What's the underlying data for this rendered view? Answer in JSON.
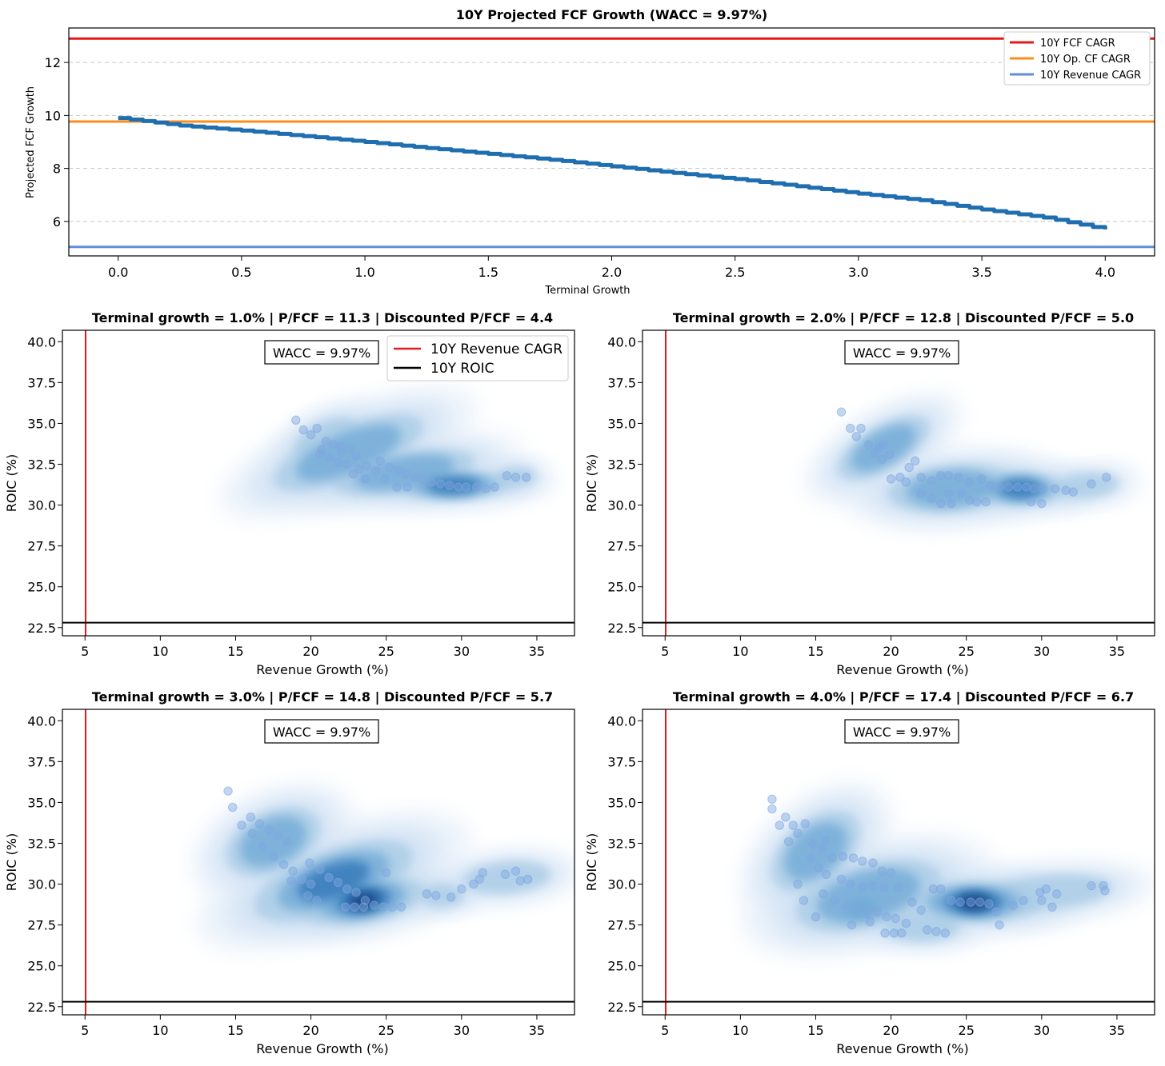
{
  "chart_data": [
    {
      "type": "line",
      "title": "10Y Projected FCF Growth (WACC = 9.97%)",
      "xlabel": "Terminal Growth",
      "ylabel": "Projected FCF Growth",
      "xlim": [
        -0.2,
        4.2
      ],
      "ylim": [
        4.7,
        13.3
      ],
      "xticks": [
        "0.0",
        "0.5",
        "1.0",
        "1.5",
        "2.0",
        "2.5",
        "3.0",
        "3.5",
        "4.0"
      ],
      "yticks": [
        "6",
        "8",
        "10",
        "12"
      ],
      "grid": "y-dashed",
      "legend_position": "top-right",
      "series": [
        {
          "name": "",
          "color": "#1f6fb0",
          "x": [
            0.0,
            0.25,
            0.5,
            0.75,
            1.0,
            1.25,
            1.5,
            1.75,
            2.0,
            2.25,
            2.5,
            2.75,
            3.0,
            3.25,
            3.5,
            3.75,
            4.0
          ],
          "y": [
            9.9,
            9.62,
            9.43,
            9.22,
            9.0,
            8.77,
            8.55,
            8.33,
            8.08,
            7.83,
            7.6,
            7.33,
            7.05,
            6.8,
            6.45,
            6.15,
            5.7
          ]
        }
      ],
      "hlines": [
        {
          "name": "10Y FCF CAGR",
          "y": 12.9,
          "color": "#e41a1c"
        },
        {
          "name": "10Y Op. CF CAGR",
          "y": 9.77,
          "color": "#ff8c1a"
        },
        {
          "name": "10Y Revenue CAGR",
          "y": 5.04,
          "color": "#5f8edb"
        }
      ]
    },
    {
      "type": "scatter",
      "title": "Terminal growth = 1.0% | P/FCF = 11.3 | Discounted P/FCF = 4.4",
      "xlabel": "Revenue Growth (%)",
      "ylabel": "ROIC (%)",
      "annotation": "WACC = 9.97%",
      "xlim": [
        3.5,
        37.5
      ],
      "ylim": [
        22,
        40.7
      ],
      "vline": {
        "name": "10Y Revenue CAGR",
        "x": 5.04,
        "color": "#e41a1c"
      },
      "hline": {
        "name": "10Y ROIC",
        "y": 22.8,
        "color": "#000000"
      },
      "show_legend": true,
      "points": [
        [
          19,
          35.2
        ],
        [
          19.5,
          34.6
        ],
        [
          20,
          34.3
        ],
        [
          20.4,
          34.7
        ],
        [
          21,
          33.9
        ],
        [
          21.5,
          33.7
        ],
        [
          22,
          33.6
        ],
        [
          22.6,
          33.4
        ],
        [
          23,
          33.0
        ],
        [
          20.7,
          33.4
        ],
        [
          21.2,
          32.9
        ],
        [
          21.8,
          32.6
        ],
        [
          22.4,
          32.5
        ],
        [
          23.2,
          32.2
        ],
        [
          23.7,
          32.4
        ],
        [
          24.3,
          32.1
        ],
        [
          24.6,
          32.7
        ],
        [
          25.2,
          32.3
        ],
        [
          25.8,
          32.1
        ],
        [
          26.3,
          31.9
        ],
        [
          26.9,
          31.7
        ],
        [
          27.4,
          31.6
        ],
        [
          28.0,
          31.4
        ],
        [
          28.6,
          31.3
        ],
        [
          29.2,
          31.2
        ],
        [
          29.8,
          31.1
        ],
        [
          30.3,
          31.1
        ],
        [
          31.0,
          31.1
        ],
        [
          31.6,
          31.0
        ],
        [
          32.2,
          31.1
        ],
        [
          33.0,
          31.8
        ],
        [
          33.6,
          31.7
        ],
        [
          34.3,
          31.7
        ],
        [
          22.8,
          31.9
        ],
        [
          23.6,
          31.6
        ],
        [
          25.7,
          31.1
        ],
        [
          26.4,
          31.1
        ],
        [
          24.9,
          31.6
        ],
        [
          20.6,
          33.1
        ],
        [
          22.0,
          33.2
        ]
      ],
      "blobs": [
        {
          "x": 22.5,
          "y": 33.2,
          "rx": 4.8,
          "ry": 1.2,
          "rot": -22,
          "w": 1.0
        },
        {
          "x": 26.2,
          "y": 32.0,
          "rx": 4.5,
          "ry": 0.9,
          "rot": -10,
          "w": 0.9
        },
        {
          "x": 29.5,
          "y": 31.2,
          "rx": 3.0,
          "ry": 0.45,
          "rot": -2,
          "w": 1.4
        },
        {
          "x": 33.6,
          "y": 31.7,
          "rx": 1.5,
          "ry": 0.35,
          "rot": -4,
          "w": 0.6
        },
        {
          "x": 21.0,
          "y": 34.0,
          "rx": 2.2,
          "ry": 0.8,
          "rot": -25,
          "w": 0.8
        }
      ]
    },
    {
      "type": "scatter",
      "title": "Terminal growth = 2.0% | P/FCF = 12.8 | Discounted P/FCF = 5.0",
      "xlabel": "Revenue Growth (%)",
      "ylabel": "ROIC (%)",
      "annotation": "WACC = 9.97%",
      "xlim": [
        3.5,
        37.5
      ],
      "ylim": [
        22,
        40.7
      ],
      "vline": {
        "name": "10Y Revenue CAGR",
        "x": 5.04,
        "color": "#e41a1c"
      },
      "hline": {
        "name": "10Y ROIC",
        "y": 22.8,
        "color": "#000000"
      },
      "show_legend": false,
      "points": [
        [
          16.7,
          35.7
        ],
        [
          17.3,
          34.7
        ],
        [
          18.0,
          34.7
        ],
        [
          17.7,
          34.2
        ],
        [
          18.5,
          33.7
        ],
        [
          19.2,
          33.5
        ],
        [
          19.5,
          33.7
        ],
        [
          18.9,
          33.2
        ],
        [
          19.9,
          33.1
        ],
        [
          19.4,
          32.8
        ],
        [
          21.2,
          32.3
        ],
        [
          21.6,
          32.7
        ],
        [
          20.6,
          31.7
        ],
        [
          20.0,
          31.6
        ],
        [
          21.0,
          31.4
        ],
        [
          22.0,
          31.7
        ],
        [
          22.7,
          31.5
        ],
        [
          23.3,
          31.8
        ],
        [
          23.8,
          31.8
        ],
        [
          24.5,
          31.7
        ],
        [
          25.2,
          31.4
        ],
        [
          26.0,
          31.6
        ],
        [
          26.6,
          31.2
        ],
        [
          27.2,
          31.1
        ],
        [
          27.8,
          31.1
        ],
        [
          28.4,
          31.1
        ],
        [
          29.0,
          31.1
        ],
        [
          29.5,
          31.0
        ],
        [
          30.1,
          31.0
        ],
        [
          30.9,
          31.0
        ],
        [
          31.6,
          30.9
        ],
        [
          32.1,
          30.8
        ],
        [
          33.3,
          31.3
        ],
        [
          34.3,
          31.7
        ],
        [
          22.0,
          30.7
        ],
        [
          22.7,
          30.4
        ],
        [
          23.3,
          30.1
        ],
        [
          24.0,
          30.1
        ],
        [
          25.2,
          30.3
        ],
        [
          25.7,
          30.2
        ],
        [
          26.3,
          30.2
        ],
        [
          29.3,
          30.2
        ],
        [
          30.0,
          30.1
        ],
        [
          23.8,
          30.7
        ],
        [
          24.7,
          30.7
        ]
      ],
      "blobs": [
        {
          "x": 19.5,
          "y": 33.5,
          "rx": 3.2,
          "ry": 1.0,
          "rot": -30,
          "w": 0.9
        },
        {
          "x": 24.0,
          "y": 31.0,
          "rx": 4.0,
          "ry": 1.1,
          "rot": -5,
          "w": 0.9
        },
        {
          "x": 28.6,
          "y": 31.0,
          "rx": 2.4,
          "ry": 0.55,
          "rot": 0,
          "w": 1.4
        },
        {
          "x": 33.0,
          "y": 31.2,
          "rx": 2.3,
          "ry": 0.5,
          "rot": -5,
          "w": 0.6
        }
      ]
    },
    {
      "type": "scatter",
      "title": "Terminal growth = 3.0% | P/FCF = 14.8 | Discounted P/FCF = 5.7",
      "xlabel": "Revenue Growth (%)",
      "ylabel": "ROIC (%)",
      "annotation": "WACC = 9.97%",
      "xlim": [
        3.5,
        37.5
      ],
      "ylim": [
        22,
        40.7
      ],
      "vline": {
        "name": "10Y Revenue CAGR",
        "x": 5.04,
        "color": "#e41a1c"
      },
      "hline": {
        "name": "10Y ROIC",
        "y": 22.8,
        "color": "#000000"
      },
      "show_legend": false,
      "points": [
        [
          14.5,
          35.7
        ],
        [
          14.8,
          34.7
        ],
        [
          15.4,
          33.6
        ],
        [
          16.0,
          34.1
        ],
        [
          16.6,
          33.7
        ],
        [
          17.2,
          33.3
        ],
        [
          17.8,
          33.0
        ],
        [
          18.4,
          32.6
        ],
        [
          16.1,
          33.1
        ],
        [
          16.8,
          32.3
        ],
        [
          17.5,
          31.7
        ],
        [
          18.2,
          31.2
        ],
        [
          18.8,
          30.8
        ],
        [
          19.4,
          30.3
        ],
        [
          20.0,
          30.0
        ],
        [
          20.6,
          30.9
        ],
        [
          21.2,
          30.4
        ],
        [
          21.8,
          30.1
        ],
        [
          22.4,
          29.7
        ],
        [
          23.0,
          29.5
        ],
        [
          23.6,
          29.0
        ],
        [
          24.2,
          28.7
        ],
        [
          24.8,
          28.6
        ],
        [
          25.4,
          28.6
        ],
        [
          26.0,
          28.6
        ],
        [
          22.3,
          28.6
        ],
        [
          22.9,
          28.6
        ],
        [
          23.5,
          28.6
        ],
        [
          19.8,
          29.3
        ],
        [
          20.4,
          29.0
        ],
        [
          18.7,
          30.2
        ],
        [
          19.9,
          31.3
        ],
        [
          25.0,
          30.7
        ],
        [
          27.7,
          29.4
        ],
        [
          28.3,
          29.3
        ],
        [
          29.3,
          29.2
        ],
        [
          30.0,
          29.7
        ],
        [
          30.8,
          30.0
        ],
        [
          31.4,
          30.7
        ],
        [
          31.2,
          30.3
        ],
        [
          32.9,
          30.6
        ],
        [
          33.6,
          30.8
        ],
        [
          33.9,
          30.2
        ],
        [
          34.4,
          30.3
        ]
      ],
      "blobs": [
        {
          "x": 17.5,
          "y": 32.6,
          "rx": 3.0,
          "ry": 1.4,
          "rot": -25,
          "w": 1.0
        },
        {
          "x": 21.5,
          "y": 30.2,
          "rx": 4.5,
          "ry": 1.3,
          "rot": -20,
          "w": 1.3
        },
        {
          "x": 23.5,
          "y": 29.0,
          "rx": 3.0,
          "ry": 0.8,
          "rot": -10,
          "w": 1.6
        },
        {
          "x": 28.7,
          "y": 29.3,
          "rx": 1.6,
          "ry": 0.45,
          "rot": 0,
          "w": 0.6
        },
        {
          "x": 33.0,
          "y": 30.4,
          "rx": 3.0,
          "ry": 0.7,
          "rot": -5,
          "w": 0.7
        }
      ]
    },
    {
      "type": "scatter",
      "title": "Terminal growth = 4.0% | P/FCF = 17.4 | Discounted P/FCF = 6.7",
      "xlabel": "Revenue Growth (%)",
      "ylabel": "ROIC (%)",
      "annotation": "WACC = 9.97%",
      "xlim": [
        3.5,
        37.5
      ],
      "ylim": [
        22,
        40.7
      ],
      "vline": {
        "name": "10Y Revenue CAGR",
        "x": 5.04,
        "color": "#e41a1c"
      },
      "hline": {
        "name": "10Y ROIC",
        "y": 22.8,
        "color": "#000000"
      },
      "show_legend": false,
      "points": [
        [
          12.1,
          35.2
        ],
        [
          12.1,
          34.6
        ],
        [
          12.6,
          33.6
        ],
        [
          13.0,
          34.1
        ],
        [
          13.5,
          33.6
        ],
        [
          13.8,
          33.1
        ],
        [
          13.2,
          32.6
        ],
        [
          14.3,
          33.7
        ],
        [
          14.8,
          32.5
        ],
        [
          15.4,
          32.2
        ],
        [
          15.7,
          32.7
        ],
        [
          14.7,
          31.6
        ],
        [
          15.2,
          31.0
        ],
        [
          16.1,
          31.6
        ],
        [
          16.8,
          31.7
        ],
        [
          17.5,
          31.6
        ],
        [
          18.1,
          31.4
        ],
        [
          18.8,
          31.3
        ],
        [
          19.4,
          30.8
        ],
        [
          20.0,
          30.7
        ],
        [
          15.7,
          30.6
        ],
        [
          16.7,
          30.3
        ],
        [
          17.3,
          30.0
        ],
        [
          18.1,
          29.8
        ],
        [
          18.8,
          29.9
        ],
        [
          19.5,
          29.8
        ],
        [
          20.5,
          29.8
        ],
        [
          15.5,
          29.4
        ],
        [
          16.3,
          29.0
        ],
        [
          17.0,
          28.7
        ],
        [
          17.8,
          28.5
        ],
        [
          18.4,
          28.2
        ],
        [
          19.1,
          28.3
        ],
        [
          19.7,
          28.0
        ],
        [
          20.3,
          27.9
        ],
        [
          17.4,
          27.5
        ],
        [
          18.6,
          27.7
        ],
        [
          19.6,
          27.0
        ],
        [
          20.2,
          27.0
        ],
        [
          20.7,
          27.0
        ],
        [
          22.4,
          27.2
        ],
        [
          23.0,
          27.1
        ],
        [
          23.6,
          27.0
        ],
        [
          22.8,
          29.7
        ],
        [
          23.3,
          29.7
        ],
        [
          24.0,
          29.0
        ],
        [
          24.6,
          28.9
        ],
        [
          25.3,
          28.9
        ],
        [
          25.9,
          28.9
        ],
        [
          26.5,
          28.8
        ],
        [
          27.2,
          27.5
        ],
        [
          27.0,
          28.3
        ],
        [
          28.1,
          28.7
        ],
        [
          28.8,
          29.0
        ],
        [
          29.9,
          29.5
        ],
        [
          30.3,
          29.7
        ],
        [
          31.0,
          29.4
        ],
        [
          30.0,
          29.0
        ],
        [
          30.7,
          28.6
        ],
        [
          33.3,
          29.9
        ],
        [
          34.1,
          29.9
        ],
        [
          34.2,
          29.6
        ],
        [
          15.0,
          28.0
        ],
        [
          14.2,
          29.0
        ],
        [
          13.8,
          30.0
        ],
        [
          22.0,
          28.4
        ],
        [
          21.4,
          28.9
        ],
        [
          21.0,
          27.6
        ]
      ],
      "blobs": [
        {
          "x": 15.0,
          "y": 32.0,
          "rx": 3.2,
          "ry": 1.5,
          "rot": -40,
          "w": 0.9
        },
        {
          "x": 18.5,
          "y": 29.3,
          "rx": 4.5,
          "ry": 1.5,
          "rot": -15,
          "w": 1.0
        },
        {
          "x": 22.0,
          "y": 27.4,
          "rx": 2.5,
          "ry": 0.6,
          "rot": 0,
          "w": 0.8
        },
        {
          "x": 25.5,
          "y": 28.9,
          "rx": 3.2,
          "ry": 0.7,
          "rot": 0,
          "w": 1.6
        },
        {
          "x": 30.5,
          "y": 29.5,
          "rx": 4.5,
          "ry": 0.8,
          "rot": -5,
          "w": 0.6
        },
        {
          "x": 18.0,
          "y": 28.5,
          "rx": 1.3,
          "ry": 0.4,
          "rot": -10,
          "w": 1.0
        }
      ]
    }
  ]
}
